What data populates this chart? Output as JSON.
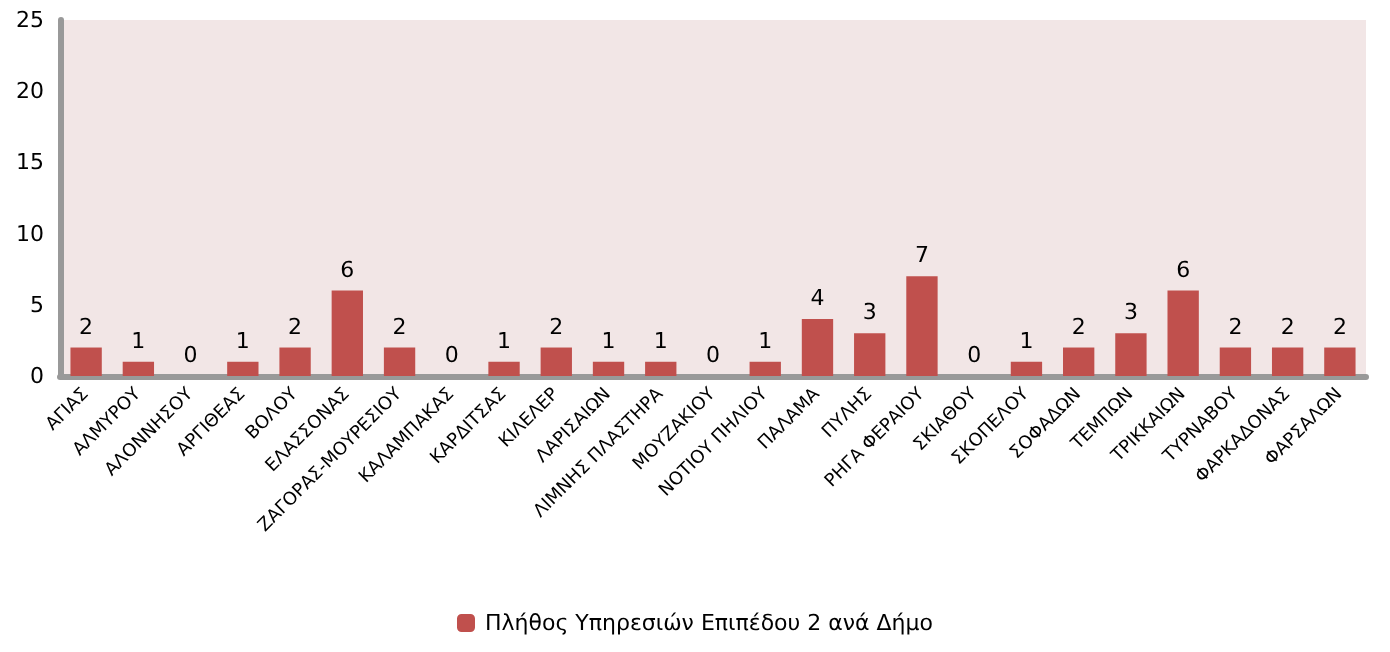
{
  "chart_data": {
    "type": "bar",
    "categories": [
      "ΑΓΙΑΣ",
      "ΑΛΜΥΡΟΥ",
      "ΑΛΟΝΝΗΣΟΥ",
      "ΑΡΓΙΘΕΑΣ",
      "ΒΟΛΟΥ",
      "ΕΛΑΣΣΟΝΑΣ",
      "ΖΑΓΟΡΑΣ-ΜΟΥΡΕΣΙΟΥ",
      "ΚΑΛΑΜΠΑΚΑΣ",
      "ΚΑΡΔΙΤΣΑΣ",
      "ΚΙΛΕΛΕΡ",
      "ΛΑΡΙΣΑΙΩΝ",
      "ΛΙΜΝΗΣ ΠΛΑΣΤΗΡΑ",
      "ΜΟΥΖΑΚΙΟΥ",
      "ΝΟΤΙΟΥ ΠΗΛΙΟΥ",
      "ΠΑΛΑΜΑ",
      "ΠΥΛΗΣ",
      "ΡΗΓΑ ΦΕΡΑΙΟΥ",
      "ΣΚΙΑΘΟΥ",
      "ΣΚΟΠΕΛΟΥ",
      "ΣΟΦΑΔΩΝ",
      "ΤΕΜΠΩΝ",
      "ΤΡΙΚΚΑΙΩΝ",
      "ΤΥΡΝΑΒΟΥ",
      "ΦΑΡΚΑΔΟΝΑΣ",
      "ΦΑΡΣΑΛΩΝ"
    ],
    "series": [
      {
        "name": "Πλήθος Υπηρεσιών Επιπέδου 2 ανά Δήμο",
        "color": "#c0504d",
        "values": [
          2,
          1,
          0,
          1,
          2,
          6,
          2,
          0,
          1,
          2,
          1,
          1,
          0,
          1,
          4,
          3,
          7,
          0,
          1,
          2,
          3,
          6,
          2,
          2,
          2
        ]
      }
    ],
    "ylim": [
      0,
      25
    ],
    "yticks": [
      0,
      5,
      10,
      15,
      20,
      25
    ],
    "grid": false,
    "legend": "bottom",
    "data_labels": true
  }
}
